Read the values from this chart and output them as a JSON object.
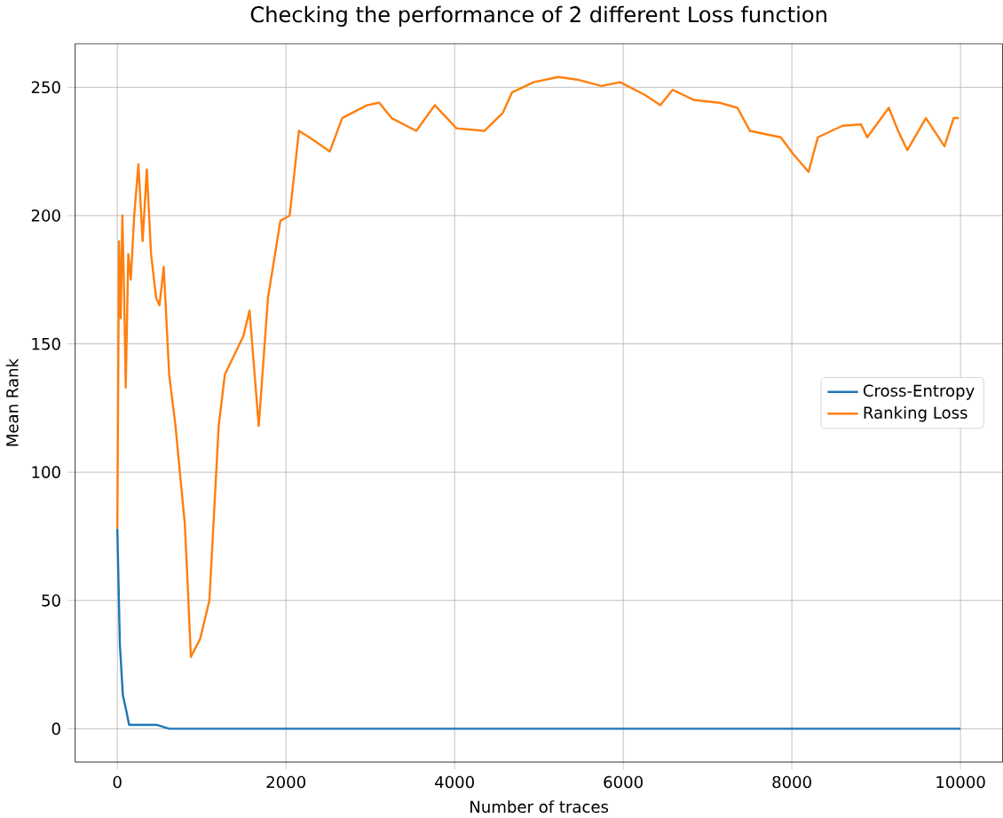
{
  "chart_data": {
    "type": "line",
    "title": "Checking the performance of 2 different Loss function",
    "xlabel": "Number of traces",
    "ylabel": "Mean Rank",
    "xlim": [
      -500,
      10500
    ],
    "ylim": [
      -13,
      267
    ],
    "xticks": [
      0,
      2000,
      4000,
      6000,
      8000,
      10000
    ],
    "yticks": [
      0,
      50,
      100,
      150,
      200,
      250
    ],
    "grid": true,
    "legend": "right",
    "series": [
      {
        "name": "Cross-Entropy",
        "color": "#1f77b4",
        "x": [
          0,
          30,
          66,
          100,
          140,
          250,
          470,
          615,
          10000
        ],
        "values": [
          78,
          33,
          13,
          8,
          1.5,
          1.5,
          1.5,
          0,
          0
        ]
      },
      {
        "name": "Ranking Loss",
        "color": "#ff7f0e",
        "x": [
          0,
          20,
          40,
          60,
          80,
          100,
          130,
          160,
          200,
          250,
          300,
          350,
          400,
          460,
          500,
          550,
          615,
          690,
          762,
          800,
          835,
          872,
          982,
          1092,
          1202,
          1275,
          1494,
          1568,
          1677,
          1787,
          1934,
          2044,
          2154,
          2300,
          2520,
          2667,
          2960,
          3105,
          3253,
          3545,
          3765,
          4022,
          4352,
          4571,
          4681,
          4938,
          5231,
          5451,
          5743,
          5963,
          6257,
          6440,
          6586,
          6842,
          7136,
          7355,
          7502,
          7868,
          8015,
          8198,
          8308,
          8600,
          8820,
          8894,
          9150,
          9260,
          9370,
          9590,
          9810,
          9919,
          9980
        ],
        "values": [
          78,
          190,
          160,
          200,
          170,
          133,
          185,
          175,
          200,
          220,
          190,
          218,
          185,
          168,
          165,
          180,
          138,
          118,
          93,
          80,
          56,
          28,
          35,
          50,
          118,
          138,
          153,
          163,
          118,
          168,
          198,
          200,
          233,
          230,
          225,
          238,
          243,
          244,
          238,
          233,
          243,
          234,
          233,
          240,
          248,
          252,
          254,
          253,
          250.5,
          252,
          247,
          243,
          249,
          245,
          244,
          242,
          233,
          230.5,
          224,
          217,
          230.5,
          235,
          235.5,
          230.5,
          242,
          233,
          225.5,
          238,
          227,
          238,
          238
        ]
      }
    ]
  }
}
